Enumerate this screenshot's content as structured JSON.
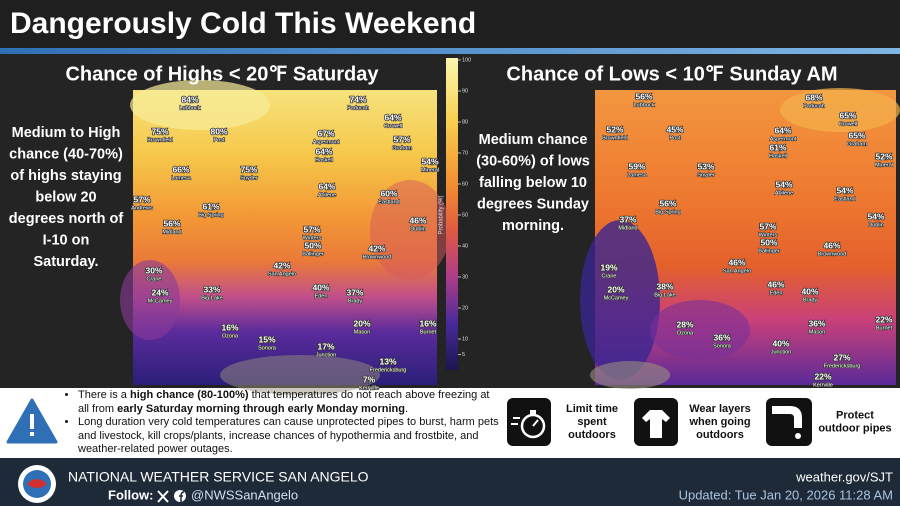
{
  "title": "Dangerously Cold This Weekend",
  "panels": [
    {
      "heading": "Chance of Highs < 20℉ Saturday",
      "description_lines": [
        "Medium to High",
        "chance (40-70%)",
        "of highs staying",
        "below 20",
        "degrees north of",
        "I-10 on",
        "Saturday."
      ],
      "points": [
        {
          "label": "84%",
          "city": "Lubbock"
        },
        {
          "label": "74%",
          "city": "Paducah"
        },
        {
          "label": "64%",
          "city": "Crowell"
        },
        {
          "label": "75%",
          "city": "Brownfield"
        },
        {
          "label": "80%",
          "city": "Post"
        },
        {
          "label": "67%",
          "city": "Aspermont"
        },
        {
          "label": "57%",
          "city": "Graham"
        },
        {
          "label": "64%",
          "city": "Haskell"
        },
        {
          "label": "66%",
          "city": "Lamesa"
        },
        {
          "label": "75%",
          "city": "Snyder"
        },
        {
          "label": "54%",
          "city": "Mineral"
        },
        {
          "label": "64%",
          "city": "Abilene"
        },
        {
          "label": "60%",
          "city": "Eastland"
        },
        {
          "label": "57%",
          "city": "Andrews"
        },
        {
          "label": "61%",
          "city": "Big Spring"
        },
        {
          "label": "56%",
          "city": "Midland"
        },
        {
          "label": "46%",
          "city": "Dublin"
        },
        {
          "label": "57%",
          "city": "Winters"
        },
        {
          "label": "50%",
          "city": "Ballinger"
        },
        {
          "label": "42%",
          "city": "Brownwood"
        },
        {
          "label": "42%",
          "city": "San Angelo"
        },
        {
          "label": "30%",
          "city": "Crane"
        },
        {
          "label": "40%",
          "city": "Eden"
        },
        {
          "label": "24%",
          "city": "McCamey"
        },
        {
          "label": "33%",
          "city": "Big Lake"
        },
        {
          "label": "37%",
          "city": "Brady"
        },
        {
          "label": "16%",
          "city": "Ozona"
        },
        {
          "label": "20%",
          "city": "Mason"
        },
        {
          "label": "16%",
          "city": "Burnet"
        },
        {
          "label": "15%",
          "city": "Sonora"
        },
        {
          "label": "17%",
          "city": "Junction"
        },
        {
          "label": "13%",
          "city": "Fredericksburg"
        },
        {
          "label": "7%",
          "city": "Kerrville"
        }
      ]
    },
    {
      "heading": "Chance of Lows < 10℉ Sunday AM",
      "description_lines": [
        "Medium chance",
        "(30-60%) of lows",
        "falling below 10",
        "degrees Sunday",
        "morning."
      ],
      "points": [
        {
          "label": "56%",
          "city": "Lubbock"
        },
        {
          "label": "68%",
          "city": "Paducah"
        },
        {
          "label": "65%",
          "city": "Crowell"
        },
        {
          "label": "52%",
          "city": "Brownfield"
        },
        {
          "label": "45%",
          "city": "Post"
        },
        {
          "label": "64%",
          "city": "Aspermont"
        },
        {
          "label": "65%",
          "city": "Graham"
        },
        {
          "label": "61%",
          "city": "Haskell"
        },
        {
          "label": "52%",
          "city": "Mineral"
        },
        {
          "label": "59%",
          "city": "Lamesa"
        },
        {
          "label": "53%",
          "city": "Snyder"
        },
        {
          "label": "54%",
          "city": "Abilene"
        },
        {
          "label": "54%",
          "city": "Eastland"
        },
        {
          "label": "56%",
          "city": "Big Spring"
        },
        {
          "label": "37%",
          "city": "Midland"
        },
        {
          "label": "54%",
          "city": "Dublin"
        },
        {
          "label": "57%",
          "city": "Winters"
        },
        {
          "label": "50%",
          "city": "Ballinger"
        },
        {
          "label": "46%",
          "city": "Brownwood"
        },
        {
          "label": "46%",
          "city": "San Angelo"
        },
        {
          "label": "19%",
          "city": "Crane"
        },
        {
          "label": "46%",
          "city": "Eden"
        },
        {
          "label": "20%",
          "city": "McCamey"
        },
        {
          "label": "38%",
          "city": "Big Lake"
        },
        {
          "label": "40%",
          "city": "Brady"
        },
        {
          "label": "28%",
          "city": "Ozona"
        },
        {
          "label": "36%",
          "city": "Mason"
        },
        {
          "label": "22%",
          "city": "Burnet"
        },
        {
          "label": "36%",
          "city": "Sonora"
        },
        {
          "label": "40%",
          "city": "Junction"
        },
        {
          "label": "27%",
          "city": "Fredericksburg"
        },
        {
          "label": "22%",
          "city": "Kerrville"
        }
      ]
    }
  ],
  "colorbar": {
    "label": "Probability (%)",
    "ticks": [
      100,
      90,
      80,
      70,
      60,
      50,
      40,
      30,
      20,
      10,
      5
    ]
  },
  "bullets": [
    [
      {
        "text": "There is a ",
        "bold": false
      },
      {
        "text": "high chance (80-100%)",
        "bold": true
      },
      {
        "text": " that temperatures do not reach above freezing at all from ",
        "bold": false
      },
      {
        "text": "early Saturday morning through early Monday morning",
        "bold": true
      },
      {
        "text": ".",
        "bold": false
      }
    ],
    [
      {
        "text": "Long duration very cold temperatures can cause unprotected pipes to burst, harm pets and livestock, kill crops/plants, increase chances of hypothermia and frostbite, and weather-related power outages.",
        "bold": false
      }
    ]
  ],
  "tips": [
    {
      "lines": [
        "Limit time",
        "spent",
        "outdoors"
      ]
    },
    {
      "lines": [
        "Wear layers",
        "when going",
        "outdoors"
      ]
    },
    {
      "lines": [
        "Protect",
        "outdoor pipes"
      ]
    }
  ],
  "footer": {
    "office": "NATIONAL WEATHER SERVICE SAN ANGELO",
    "follow": "Follow:",
    "handle": "@NWSSanAngelo",
    "website": "weather.gov/SJT",
    "updated": "Updated: Tue Jan 20, 2026 11:28 AM"
  }
}
